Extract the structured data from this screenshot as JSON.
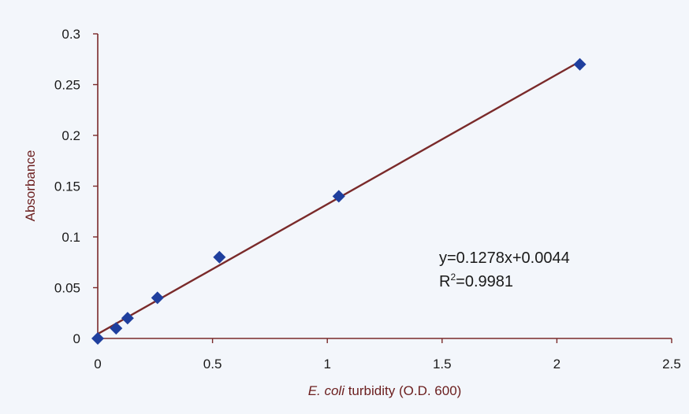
{
  "chart_data": {
    "type": "scatter",
    "title": "",
    "xlabel_italic": "E. coli",
    "xlabel_rest": " turbidity (O.D. 600)",
    "ylabel": "Absorbance",
    "xlim": [
      0,
      2.5
    ],
    "ylim": [
      0,
      0.3
    ],
    "x_ticks": [
      0,
      0.5,
      1,
      1.5,
      2,
      2.5
    ],
    "x_tick_labels": [
      "0",
      "0.5",
      "1",
      "1.5",
      "2",
      "2.5"
    ],
    "y_ticks": [
      0,
      0.05,
      0.1,
      0.15,
      0.2,
      0.25,
      0.3
    ],
    "y_tick_labels": [
      "0",
      "0.05",
      "0.1",
      "0.15",
      "0.2",
      "0.25",
      "0.3"
    ],
    "grid": false,
    "series": [
      {
        "x": [
          0,
          0.08,
          0.13,
          0.26,
          0.53,
          1.05,
          2.1
        ],
        "y": [
          0,
          0.01,
          0.02,
          0.04,
          0.08,
          0.14,
          0.27
        ]
      }
    ],
    "trendline": {
      "slope": 0.1278,
      "intercept": 0.0044,
      "x_range": [
        0,
        2.1
      ]
    },
    "annotations": {
      "equation": "y=0.1278x+0.0044",
      "r2_prefix": "R",
      "r2_sup": "2",
      "r2_value": "=0.9981"
    },
    "colors": {
      "marker": "#1f3f9e",
      "trendline": "#7a2a2a",
      "axis": "#7a2a2a",
      "axis_title": "#6b1e1e"
    }
  }
}
